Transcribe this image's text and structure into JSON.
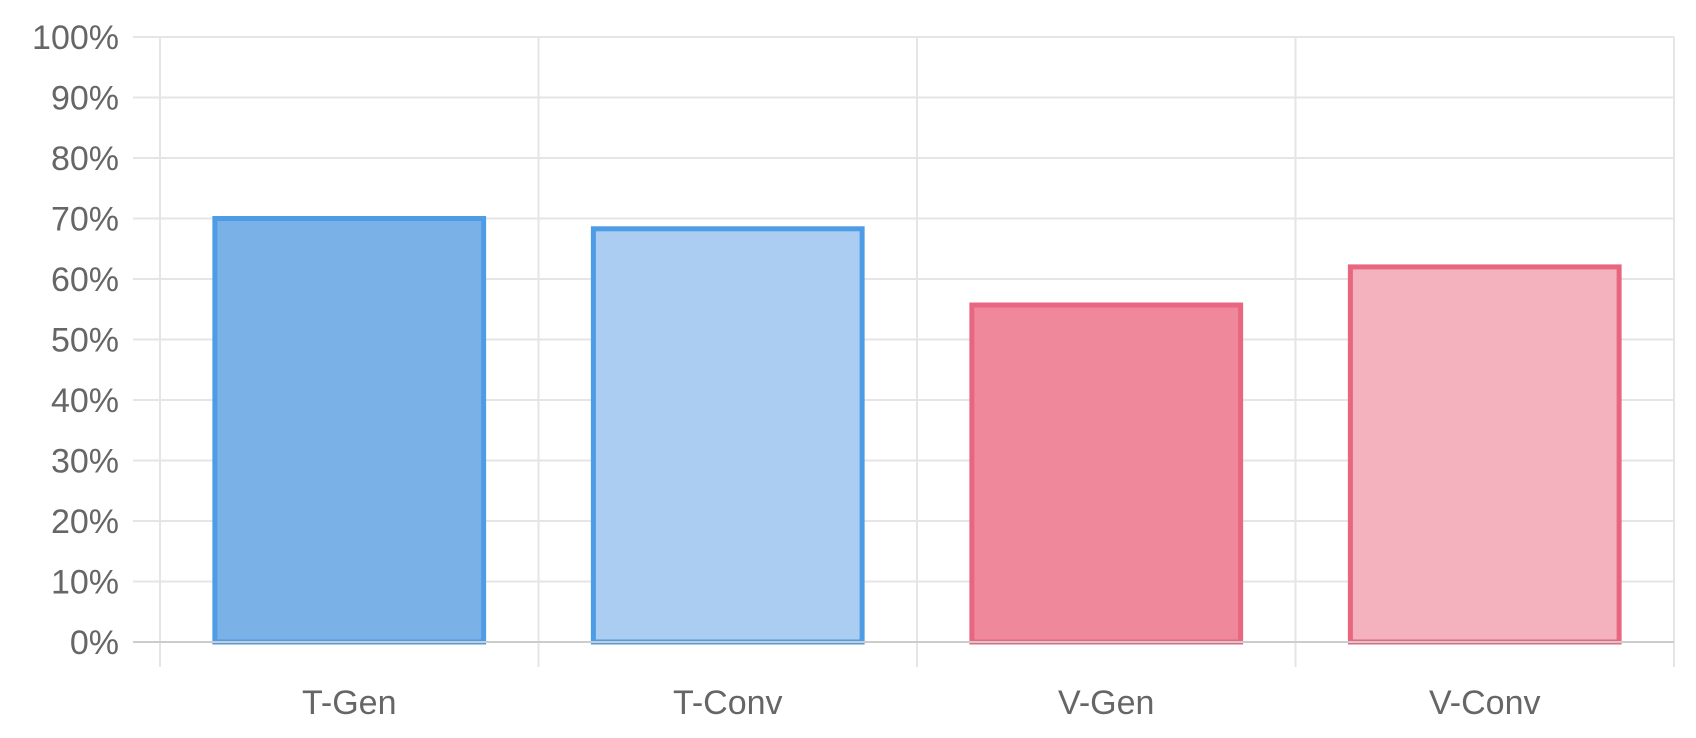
{
  "chart_data": {
    "type": "bar",
    "categories": [
      "T-Gen",
      "T-Conv",
      "V-Gen",
      "V-Conv"
    ],
    "values": [
      70,
      68.3,
      55.7,
      62
    ],
    "ylim": [
      0,
      100
    ],
    "yticks": [
      "0%",
      "10%",
      "20%",
      "30%",
      "40%",
      "50%",
      "60%",
      "70%",
      "80%",
      "90%",
      "100%"
    ],
    "grid": true,
    "legend": "none",
    "colors": {
      "fill": [
        "#7ab2e8",
        "#abcdf2",
        "#f0889c",
        "#f4b2bf"
      ],
      "border": [
        "#4e9be6",
        "#4e9be6",
        "#e8667f",
        "#e8667f"
      ],
      "grid": "#e5e5e5",
      "axis": "#cccccc"
    }
  }
}
